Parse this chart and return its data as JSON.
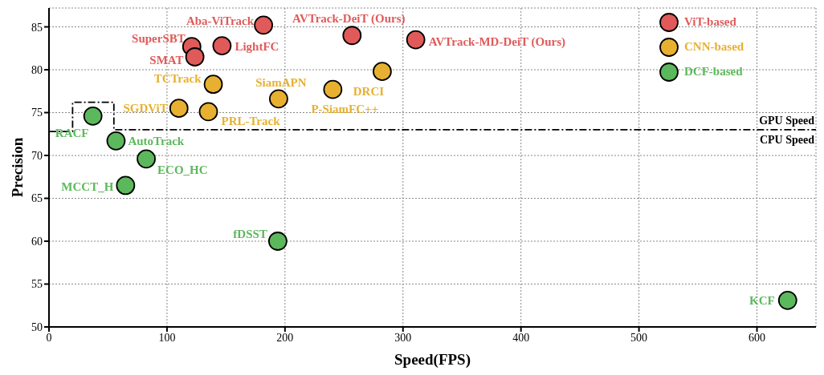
{
  "chart_data": {
    "type": "scatter",
    "xlabel": "Speed(FPS)",
    "ylabel": "Precision",
    "xlim": [
      0,
      650
    ],
    "xticks": [
      0,
      100,
      200,
      300,
      400,
      500,
      600
    ],
    "ylim": [
      50,
      87.2
    ],
    "yticks": [
      50,
      55,
      60,
      65,
      70,
      75,
      80,
      85
    ],
    "grid": true,
    "legend": "top right",
    "marker": "circle",
    "series": [
      {
        "name": "ViT-based",
        "color": "#e05a5a",
        "x": [
          181.8,
          256.8,
          310.8,
          121,
          146.6,
          123.6
        ],
        "values": [
          85.2,
          84.0,
          83.5,
          82.7,
          82.8,
          81.5
        ]
      },
      {
        "name": "CNN-based",
        "color": "#e8b030",
        "x": [
          139.2,
          194.6,
          240.5,
          282.4,
          110.1,
          135.1
        ],
        "values": [
          78.3,
          76.6,
          77.7,
          79.8,
          75.5,
          75.1
        ]
      },
      {
        "name": "DCF-based",
        "color": "#5cb85c",
        "x": [
          37.2,
          56.8,
          82.4,
          64.9,
          193.9,
          626
        ],
        "values": [
          74.6,
          71.7,
          69.6,
          66.5,
          60.0,
          53.1
        ]
      },
      {
        "type": "line",
        "color": "#000000",
        "line_style": "dashed",
        "marker": "none",
        "x": [
          0,
          20,
          20,
          55,
          55,
          650
        ],
        "values": [
          72.8,
          72.8,
          76.2,
          76.2,
          73,
          73
        ]
      }
    ],
    "annotations": [
      {
        "text": "Aba-ViTrack",
        "x": 181.8,
        "y": 85.2
      },
      {
        "text": "AVTrack-DeiT (Ours)",
        "x": 256.8,
        "y": 84.0
      },
      {
        "text": "AVTrack-MD-DeiT (Ours)",
        "x": 310.8,
        "y": 83.5
      },
      {
        "text": "SuperSBT",
        "x": 121,
        "y": 82.7
      },
      {
        "text": "LightFC",
        "x": 146.6,
        "y": 82.8
      },
      {
        "text": "SMAT",
        "x": 123.6,
        "y": 81.5
      },
      {
        "text": "TCTrack",
        "x": 139.2,
        "y": 78.3
      },
      {
        "text": "SiamAPN",
        "x": 194.6,
        "y": 76.6
      },
      {
        "text": "P-SiamFC++",
        "x": 240.5,
        "y": 77.7
      },
      {
        "text": "DRCI",
        "x": 282.4,
        "y": 79.8
      },
      {
        "text": "SGDViT",
        "x": 110.1,
        "y": 75.5
      },
      {
        "text": "PRL-Track",
        "x": 135.1,
        "y": 75.1
      },
      {
        "text": "RACF",
        "x": 37.2,
        "y": 74.6
      },
      {
        "text": "AutoTrack",
        "x": 56.8,
        "y": 71.7
      },
      {
        "text": "ECO_HC",
        "x": 82.4,
        "y": 69.6
      },
      {
        "text": "MCCT_H",
        "x": 64.9,
        "y": 66.5
      },
      {
        "text": "fDSST",
        "x": 193.9,
        "y": 60.0
      },
      {
        "text": "KCF",
        "x": 626,
        "y": 53.1
      },
      "GPU Speed",
      "CPU Speed"
    ]
  }
}
